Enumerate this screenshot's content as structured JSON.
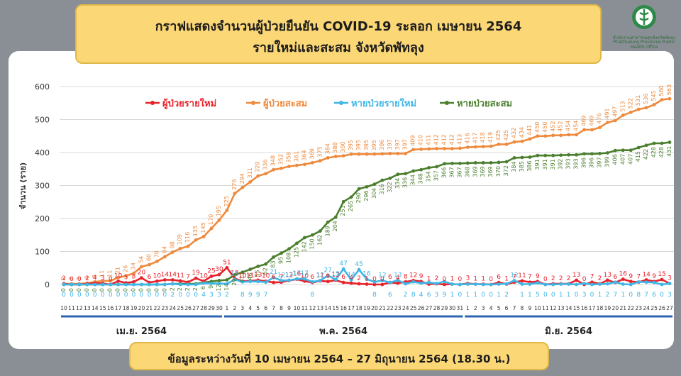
{
  "title": {
    "line1": "กราฟแสดงจำนวนผู้ป่วยยืนยัน COVID-19 ระลอก เมษายน 2564",
    "line2": "รายใหม่และสะสม จังหวัดพัทลุง"
  },
  "logo": {
    "icon": "ministry-of-public-health-emblem-icon",
    "line1": "สำนักงานสาธารณสุขจังหวัดพัทลุง",
    "line2": "Phatthalung Provincial Public Health Office"
  },
  "footer": {
    "text": "ข้อมูลระหว่างวันที่ 10 เมษายน 2564 – 27 มิถุนายน 2564 (18.30 น.)"
  },
  "colors": {
    "new_cases": "#e8222b",
    "cum_cases": "#ee8a3e",
    "new_recovered": "#3fb6e6",
    "cum_recovered": "#4b7f2e",
    "axis_band": "#2e64b1"
  },
  "chart_data": {
    "type": "line",
    "ylabel": "จำนวน (ราย)",
    "ylim": [
      0,
      600
    ],
    "yticks": [
      "0",
      "100",
      "200",
      "300",
      "400",
      "500",
      "600"
    ],
    "grid": true,
    "legend_position": "top-center",
    "months": [
      {
        "label": "เม.ย. 2564",
        "start": 0,
        "end": 20
      },
      {
        "label": "พ.ค. 2564",
        "start": 21,
        "end": 51
      },
      {
        "label": "มิ.ย. 2564",
        "start": 52,
        "end": 78
      }
    ],
    "x": [
      "10",
      "11",
      "12",
      "13",
      "14",
      "15",
      "16",
      "17",
      "18",
      "19",
      "20",
      "21",
      "22",
      "23",
      "24",
      "25",
      "26",
      "27",
      "28",
      "29",
      "30",
      "1",
      "2",
      "3",
      "4",
      "5",
      "6",
      "7",
      "8",
      "9",
      "10",
      "11",
      "12",
      "13",
      "14",
      "15",
      "16",
      "17",
      "18",
      "19",
      "20",
      "21",
      "22",
      "23",
      "24",
      "25",
      "26",
      "27",
      "28",
      "29",
      "30",
      "31",
      "1",
      "2",
      "3",
      "4",
      "5",
      "6",
      "7",
      "8",
      "9",
      "10",
      "11",
      "12",
      "13",
      "14",
      "15",
      "16",
      "17",
      "18",
      "19",
      "20",
      "21",
      "22",
      "23",
      "24",
      "25",
      "26",
      "27"
    ],
    "series": [
      {
        "name": "ผู้ป่วยรายใหม่",
        "key": "new_cases",
        "values": [
          2,
          0,
          0,
          2,
          4,
          3,
          0,
          10,
          5,
          8,
          20,
          6,
          10,
          14,
          14,
          11,
          7,
          19,
          10,
          25,
          30,
          51,
          18,
          10,
          11,
          13,
          10,
          6,
          7,
          12,
          16,
          10,
          6,
          11,
          9,
          13,
          6,
          4,
          2,
          1,
          0,
          0,
          6,
          4,
          8,
          12,
          9,
          1,
          2,
          0,
          1,
          0,
          3,
          1,
          1,
          0,
          6,
          1,
          7,
          11,
          7,
          9,
          0,
          2,
          2,
          2,
          13,
          0,
          7,
          2,
          13,
          6,
          16,
          9,
          7,
          14,
          9,
          15,
          3
        ]
      },
      {
        "name": "ผู้ป่วยสะสม",
        "key": "cum_cases",
        "values": [
          2,
          2,
          2,
          4,
          8,
          11,
          11,
          21,
          26,
          34,
          54,
          60,
          70,
          84,
          98,
          109,
          116,
          135,
          145,
          170,
          195,
          225,
          276,
          294,
          311,
          329,
          336,
          348,
          352,
          358,
          361,
          364,
          369,
          375,
          384,
          388,
          390,
          395,
          395,
          395,
          395,
          396,
          397,
          397,
          397,
          409,
          410,
          411,
          412,
          412,
          412,
          413,
          416,
          417,
          418,
          419,
          425,
          425,
          432,
          434,
          441,
          450,
          450,
          452,
          452,
          454,
          454,
          469,
          469,
          476,
          491,
          497,
          513,
          522,
          531,
          536,
          545,
          560,
          563
        ]
      },
      {
        "name": "หายป่วยรายใหม่",
        "key": "new_recovered",
        "values": [
          0,
          0,
          0,
          0,
          0,
          0,
          0,
          0,
          0,
          0,
          0,
          0,
          0,
          0,
          2,
          0,
          0,
          0,
          4,
          3,
          3,
          2,
          15,
          8,
          9,
          9,
          7,
          21,
          12,
          13,
          17,
          17,
          8,
          12,
          27,
          15,
          47,
          14,
          45,
          16,
          8,
          12,
          6,
          13,
          2,
          8,
          4,
          6,
          3,
          9,
          1,
          0,
          1,
          1,
          0,
          0,
          1,
          2,
          12,
          1,
          1,
          5,
          0,
          0,
          1,
          1,
          0,
          3,
          0,
          1,
          2,
          7,
          1,
          0,
          8,
          7,
          6,
          0,
          3
        ]
      },
      {
        "name": "หายป่วยสะสม",
        "key": "cum_recovered",
        "values": [
          0,
          0,
          0,
          0,
          0,
          0,
          0,
          0,
          0,
          0,
          0,
          0,
          0,
          0,
          2,
          2,
          2,
          2,
          6,
          9,
          12,
          14,
          29,
          37,
          46,
          55,
          62,
          83,
          95,
          108,
          125,
          142,
          150,
          162,
          189,
          204,
          251,
          265,
          290,
          296,
          304,
          316,
          322,
          334,
          336,
          344,
          348,
          354,
          357,
          366,
          367,
          367,
          368,
          369,
          369,
          369,
          370,
          372,
          384,
          385,
          386,
          391,
          391,
          391,
          392,
          393,
          393,
          396,
          396,
          397,
          399,
          406,
          407,
          407,
          415,
          422,
          428,
          428,
          431
        ]
      }
    ]
  }
}
